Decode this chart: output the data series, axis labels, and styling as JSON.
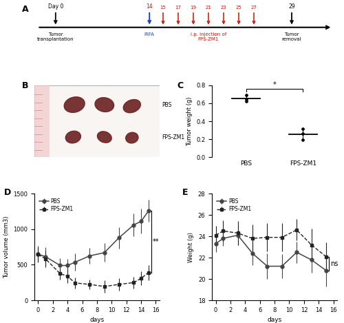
{
  "panel_A": {
    "timeline_y": 0.55,
    "day0_x": 0.7,
    "irfa_x": 3.8,
    "fps_day_labels": [
      "15",
      "17",
      "19",
      "21",
      "23",
      "25",
      "27"
    ],
    "fps_x_positions": [
      4.25,
      4.75,
      5.25,
      5.75,
      6.25,
      6.75,
      7.25
    ],
    "end_x": 8.5,
    "arrow_color_red": "#cc1100",
    "arrow_color_blue": "#1144cc"
  },
  "panel_C": {
    "groups": [
      "PBS",
      "FPS-ZM1"
    ],
    "pbs_points": [
      0.695,
      0.645,
      0.625
    ],
    "pbs_mean": 0.655,
    "fpszm1_points": [
      0.315,
      0.265,
      0.195
    ],
    "fpszm1_mean": 0.258,
    "ylabel": "Tumor weight (g)",
    "ylim": [
      0.0,
      0.8
    ],
    "yticks": [
      0.0,
      0.2,
      0.4,
      0.6,
      0.8
    ],
    "significance": "*",
    "sig_y": 0.76
  },
  "panel_D": {
    "days": [
      0,
      1,
      3,
      4,
      5,
      7,
      9,
      11,
      13,
      14,
      15
    ],
    "pbs_mean": [
      650,
      615,
      490,
      490,
      535,
      625,
      670,
      880,
      1060,
      1110,
      1255
    ],
    "pbs_err": [
      120,
      130,
      100,
      90,
      120,
      110,
      130,
      150,
      160,
      175,
      155
    ],
    "fpszm1_mean": [
      645,
      585,
      375,
      340,
      245,
      225,
      195,
      225,
      250,
      310,
      390
    ],
    "fpszm1_err": [
      100,
      115,
      85,
      100,
      75,
      65,
      85,
      90,
      85,
      95,
      105
    ],
    "xlabel": "days",
    "ylabel": "Tumor volume (mm3)",
    "ylim": [
      0,
      1500
    ],
    "yticks": [
      0,
      500,
      1000,
      1500
    ],
    "xlim": [
      -0.5,
      16.5
    ],
    "xticks": [
      0,
      2,
      4,
      6,
      8,
      10,
      12,
      14,
      16
    ],
    "significance": "**",
    "sig_x": 15.4,
    "sig_y1": 1255,
    "sig_y2": 390
  },
  "panel_E": {
    "days": [
      0,
      1,
      3,
      5,
      7,
      9,
      11,
      13,
      15
    ],
    "pbs_mean": [
      23.3,
      23.8,
      24.1,
      22.4,
      21.2,
      21.2,
      22.5,
      21.8,
      20.8
    ],
    "pbs_err": [
      0.8,
      0.7,
      0.9,
      1.1,
      1.2,
      1.1,
      1.0,
      1.2,
      1.5
    ],
    "fpszm1_mean": [
      24.1,
      24.5,
      24.3,
      23.8,
      23.9,
      23.9,
      24.6,
      23.2,
      22.1
    ],
    "fpszm1_err": [
      0.9,
      1.0,
      1.1,
      1.3,
      1.3,
      1.3,
      1.0,
      1.5,
      1.3
    ],
    "xlabel": "days",
    "ylabel": "Weight (g)",
    "ylim": [
      18,
      28
    ],
    "yticks": [
      18,
      20,
      22,
      24,
      26,
      28
    ],
    "xlim": [
      -0.5,
      16.5
    ],
    "xticks": [
      0,
      2,
      4,
      6,
      8,
      10,
      12,
      14,
      16
    ],
    "significance": "ns",
    "sig_x": 15.4,
    "sig_y1": 22.1,
    "sig_y2": 20.8
  },
  "colors": {
    "pbs": "#444444",
    "fpszm1": "#222222",
    "black": "#000000",
    "red": "#cc1100",
    "blue": "#1144cc"
  }
}
